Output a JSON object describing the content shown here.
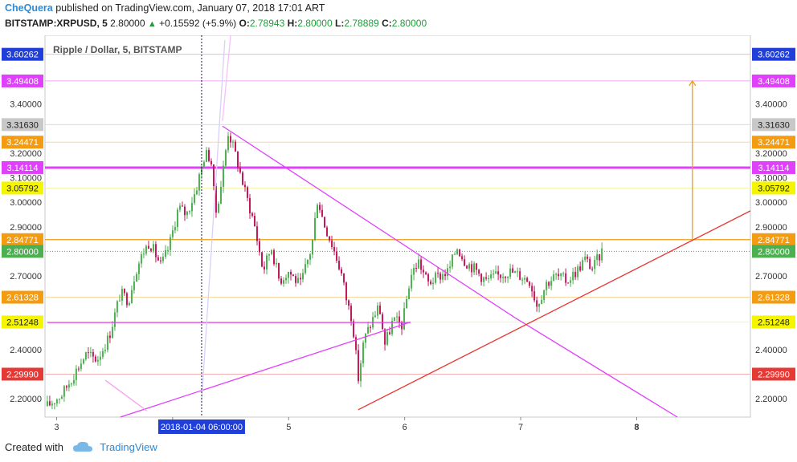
{
  "header": {
    "author": "CheQuera",
    "published_text": "published on TradingView.com, January 07, 2018 17:01 ART",
    "symbol": "BITSTAMP:XRPUSD, 5",
    "last": "2.80000",
    "change": "+0.15592 (+5.9%)",
    "o_label": "O:",
    "o_val": "2.78943",
    "h_label": "H:",
    "h_val": "2.80000",
    "l_label": "L:",
    "l_val": "2.78889",
    "c_label": "C:",
    "c_val": "2.80000"
  },
  "footer": {
    "created_with": "Created with",
    "brand": "TradingView"
  },
  "colors": {
    "up": "#4caf50",
    "down": "#c2185b",
    "magenta": "#e040fb",
    "orange": "#f39c12",
    "red": "#e53935",
    "yellow": "#f5f500"
  },
  "chart_data": {
    "type": "candlestick",
    "title": "Ripple / Dollar, 5, BITSTAMP",
    "ylim": [
      2.125,
      3.68
    ],
    "xlim": [
      2.9,
      8.98
    ],
    "x_ticks": [
      "3",
      "4",
      "5",
      "6",
      "7",
      "8"
    ],
    "x_tick_values": [
      3,
      4,
      5,
      6,
      7,
      8
    ],
    "crosshair_label": "2018-01-04 06:00:00",
    "crosshair_x": 4.25,
    "y_ticks": [
      "2.20000",
      "2.40000",
      "2.70000",
      "2.90000",
      "3.00000",
      "3.10000",
      "3.20000",
      "3.40000"
    ],
    "y_tick_values": [
      2.2,
      2.4,
      2.7,
      2.9,
      3.0,
      3.1,
      3.2,
      3.4
    ],
    "price_labels": [
      {
        "value": 3.60262,
        "text": "3.60262",
        "bg": "#1f3fd8",
        "fg": "#ffffff"
      },
      {
        "value": 3.49408,
        "text": "3.49408",
        "bg": "#e040fb",
        "fg": "#ffffff"
      },
      {
        "value": 3.3163,
        "text": "3.31630",
        "bg": "#c8c8c8",
        "fg": "#222222"
      },
      {
        "value": 3.24471,
        "text": "3.24471",
        "bg": "#f39c12",
        "fg": "#ffffff"
      },
      {
        "value": 3.14114,
        "text": "3.14114",
        "bg": "#e040fb",
        "fg": "#ffffff"
      },
      {
        "value": 3.05792,
        "text": "3.05792",
        "bg": "#f5f500",
        "fg": "#222222"
      },
      {
        "value": 2.84771,
        "text": "2.84771",
        "bg": "#f39c12",
        "fg": "#ffffff"
      },
      {
        "value": 2.8,
        "text": "2.80000",
        "bg": "#4caf50",
        "fg": "#ffffff"
      },
      {
        "value": 2.61328,
        "text": "2.61328",
        "bg": "#f39c12",
        "fg": "#ffffff"
      },
      {
        "value": 2.51248,
        "text": "2.51248",
        "bg": "#f5f500",
        "fg": "#222222"
      },
      {
        "value": 2.2999,
        "text": "2.29990",
        "bg": "#e53935",
        "fg": "#ffffff"
      }
    ],
    "h_lines": [
      {
        "value": 3.60262,
        "color": "#c8c8e8",
        "width": 1
      },
      {
        "value": 3.49408,
        "color": "#f0a8f8",
        "width": 1
      },
      {
        "value": 3.3163,
        "color": "#dcdcdc",
        "width": 1
      },
      {
        "value": 3.24471,
        "color": "#f8d8a0",
        "width": 1
      },
      {
        "value": 3.14114,
        "color": "#e040fb",
        "width": 3
      },
      {
        "value": 3.05792,
        "color": "#f5f5a0",
        "width": 1
      },
      {
        "value": 2.84771,
        "color": "#f39c12",
        "width": 1.2
      },
      {
        "value": 2.61328,
        "color": "#f8d8a0",
        "width": 1
      },
      {
        "value": 2.51248,
        "color": "#f5f5a0",
        "width": 1
      },
      {
        "value": 2.2999,
        "color": "#f4b0b0",
        "width": 1
      }
    ],
    "candle_path": [
      [
        2.92,
        2.17
      ],
      [
        3.05,
        2.22
      ],
      [
        3.15,
        2.3
      ],
      [
        3.25,
        2.38
      ],
      [
        3.35,
        2.36
      ],
      [
        3.45,
        2.45
      ],
      [
        3.55,
        2.63
      ],
      [
        3.62,
        2.6
      ],
      [
        3.68,
        2.72
      ],
      [
        3.75,
        2.8
      ],
      [
        3.8,
        2.84
      ],
      [
        3.9,
        2.74
      ],
      [
        3.97,
        2.82
      ],
      [
        4.05,
        2.98
      ],
      [
        4.12,
        2.95
      ],
      [
        4.2,
        3.05
      ],
      [
        4.28,
        3.2
      ],
      [
        4.33,
        3.18
      ],
      [
        4.37,
        2.95
      ],
      [
        4.42,
        3.08
      ],
      [
        4.48,
        3.29
      ],
      [
        4.55,
        3.18
      ],
      [
        4.62,
        3.05
      ],
      [
        4.7,
        2.92
      ],
      [
        4.78,
        2.72
      ],
      [
        4.85,
        2.82
      ],
      [
        4.92,
        2.68
      ],
      [
        5.0,
        2.72
      ],
      [
        5.1,
        2.66
      ],
      [
        5.2,
        2.82
      ],
      [
        5.25,
        3.02
      ],
      [
        5.3,
        2.92
      ],
      [
        5.38,
        2.82
      ],
      [
        5.45,
        2.72
      ],
      [
        5.5,
        2.6
      ],
      [
        5.55,
        2.52
      ],
      [
        5.6,
        2.28
      ],
      [
        5.65,
        2.44
      ],
      [
        5.72,
        2.52
      ],
      [
        5.78,
        2.58
      ],
      [
        5.83,
        2.42
      ],
      [
        5.9,
        2.52
      ],
      [
        5.98,
        2.5
      ],
      [
        6.05,
        2.7
      ],
      [
        6.12,
        2.76
      ],
      [
        6.2,
        2.67
      ],
      [
        6.3,
        2.7
      ],
      [
        6.38,
        2.72
      ],
      [
        6.45,
        2.82
      ],
      [
        6.52,
        2.76
      ],
      [
        6.6,
        2.73
      ],
      [
        6.7,
        2.68
      ],
      [
        6.8,
        2.7
      ],
      [
        6.9,
        2.72
      ],
      [
        7.0,
        2.7
      ],
      [
        7.08,
        2.68
      ],
      [
        7.14,
        2.58
      ],
      [
        7.22,
        2.67
      ],
      [
        7.3,
        2.7
      ],
      [
        7.4,
        2.68
      ],
      [
        7.5,
        2.73
      ],
      [
        7.55,
        2.77
      ],
      [
        7.62,
        2.73
      ],
      [
        7.7,
        2.8
      ]
    ],
    "lines": [
      {
        "from": [
          4.43,
          3.31
        ],
        "to": [
          6.95,
          2.53
        ],
        "color": "#e040fb"
      },
      {
        "from": [
          6.95,
          2.53
        ],
        "to": [
          8.35,
          2.125
        ],
        "color": "#e040fb"
      },
      {
        "from": [
          5.6,
          2.155
        ],
        "to": [
          8.98,
          2.965
        ],
        "color": "#e53935"
      },
      {
        "from": [
          3.55,
          2.125
        ],
        "to": [
          6.05,
          2.512
        ],
        "color": "#e040fb"
      },
      {
        "from": [
          2.92,
          2.51
        ],
        "to": [
          6.05,
          2.51
        ],
        "color": "#e040fb"
      },
      {
        "from": [
          3.42,
          2.275
        ],
        "to": [
          3.78,
          2.15
        ],
        "color": "#f8a0f0"
      },
      {
        "from": [
          4.25,
          2.19
        ],
        "to": [
          4.45,
          3.66
        ],
        "color": "#d8d0f8"
      },
      {
        "from": [
          4.43,
          3.33
        ],
        "to": [
          4.5,
          3.68
        ],
        "color": "#f8c0f8"
      }
    ],
    "target_arrow": {
      "x": 8.48,
      "from": 2.84771,
      "to": 3.49408,
      "color": "#f39c12"
    }
  }
}
